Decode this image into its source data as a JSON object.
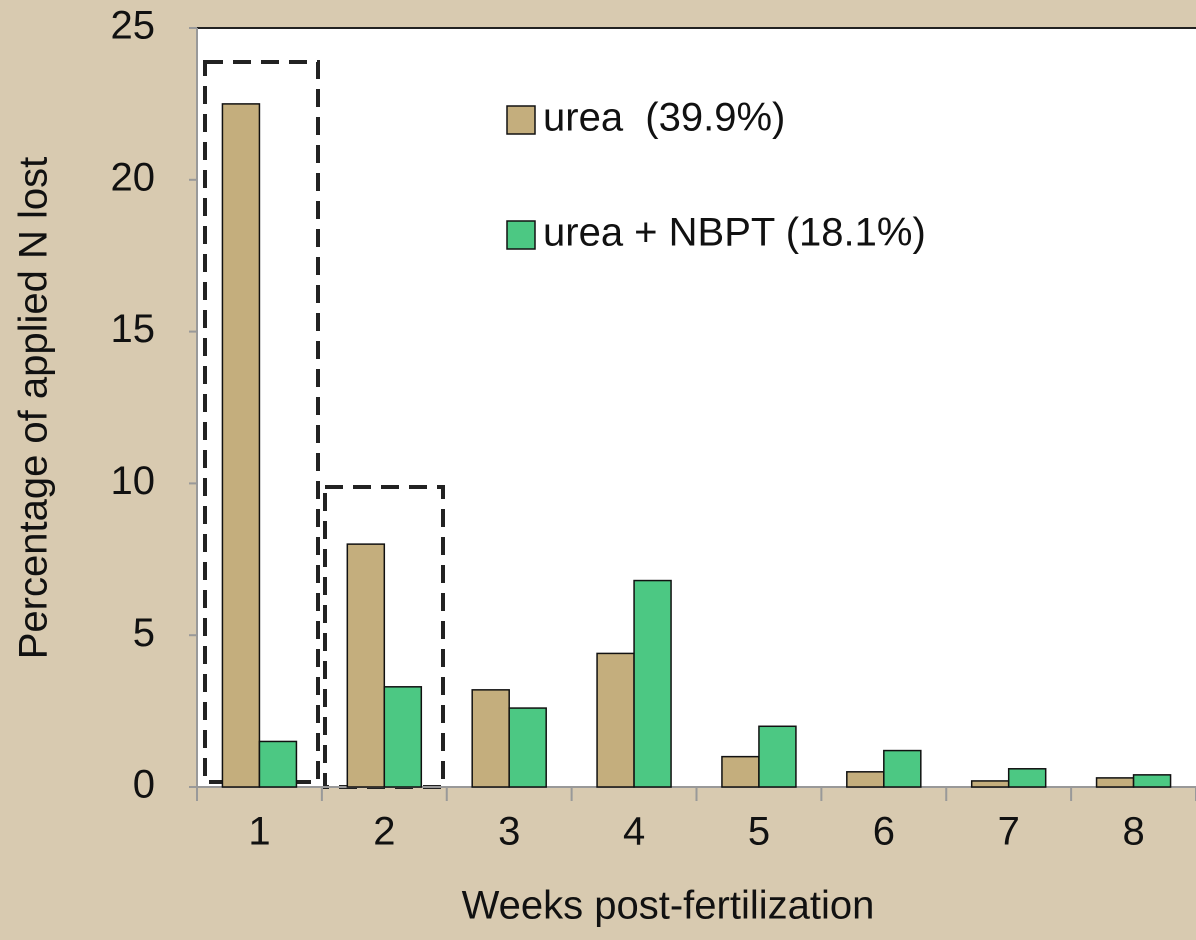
{
  "chart_data": {
    "type": "bar",
    "xlabel": "Weeks post-fertilization",
    "ylabel": "Percentage of applied N lost",
    "categories": [
      "1",
      "2",
      "3",
      "4",
      "5",
      "6",
      "7",
      "8"
    ],
    "series": [
      {
        "name": "urea  (39.9%)",
        "color": "#c4ae7d",
        "values": [
          22.5,
          8.0,
          3.2,
          4.4,
          1.0,
          0.5,
          0.2,
          0.3
        ]
      },
      {
        "name": "urea + NBPT (18.1%)",
        "color": "#4cc883",
        "values": [
          1.5,
          3.3,
          2.6,
          6.8,
          2.0,
          1.2,
          0.6,
          0.4
        ]
      }
    ],
    "ylim": [
      0,
      25
    ],
    "yticks": [
      0,
      5,
      10,
      15,
      20,
      25
    ],
    "grid": false
  }
}
